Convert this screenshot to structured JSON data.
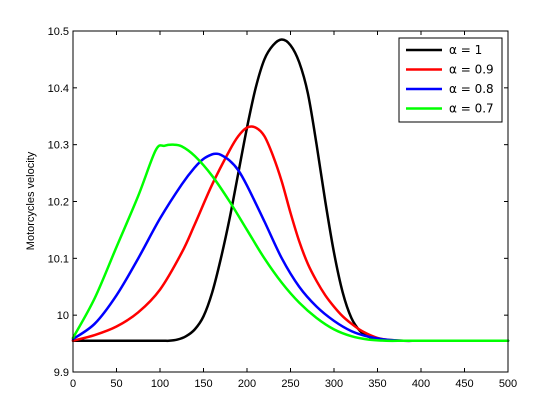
{
  "chart_data": {
    "type": "line",
    "title": "",
    "xlabel": "",
    "ylabel": "Motorcycles velocity",
    "xlim": [
      0,
      500
    ],
    "ylim": [
      9.9,
      10.5
    ],
    "xticks": [
      0,
      50,
      100,
      150,
      200,
      250,
      300,
      350,
      400,
      450,
      500
    ],
    "yticks": [
      9.9,
      10,
      10.1,
      10.2,
      10.3,
      10.4,
      10.5
    ],
    "xtick_labels": [
      "0",
      "50",
      "100",
      "150",
      "200",
      "250",
      "300",
      "350",
      "400",
      "450",
      "500"
    ],
    "ytick_labels": [
      "9.9",
      "10",
      "10.1",
      "10.2",
      "10.3",
      "10.4",
      "10.5"
    ],
    "grid": false,
    "legend_position": "top-right",
    "series": [
      {
        "name": "α = 1",
        "color": "#000000",
        "x": [
          0,
          50,
          100,
          110,
          120,
          130,
          140,
          150,
          160,
          170,
          180,
          190,
          200,
          210,
          220,
          230,
          240,
          250,
          260,
          270,
          280,
          290,
          300,
          310,
          320,
          330,
          340,
          350,
          360,
          370,
          380,
          400,
          450,
          500
        ],
        "y": [
          9.955,
          9.955,
          9.955,
          9.955,
          9.957,
          9.963,
          9.975,
          9.998,
          10.04,
          10.1,
          10.17,
          10.25,
          10.33,
          10.4,
          10.45,
          10.475,
          10.485,
          10.475,
          10.445,
          10.39,
          10.3,
          10.2,
          10.11,
          10.04,
          9.995,
          9.972,
          9.962,
          9.958,
          9.956,
          9.955,
          9.955,
          9.955,
          9.955,
          9.955
        ]
      },
      {
        "name": "α = 0.9",
        "color": "#ff0000",
        "x": [
          0,
          25,
          50,
          75,
          100,
          125,
          140,
          160,
          180,
          190,
          200,
          210,
          220,
          230,
          240,
          250,
          260,
          270,
          280,
          290,
          300,
          310,
          320,
          330,
          340,
          350,
          360,
          380,
          400,
          450,
          500
        ],
        "y": [
          9.955,
          9.965,
          9.98,
          10.005,
          10.045,
          10.11,
          10.16,
          10.23,
          10.29,
          10.315,
          10.33,
          10.33,
          10.315,
          10.28,
          10.235,
          10.18,
          10.13,
          10.09,
          10.06,
          10.035,
          10.015,
          9.998,
          9.985,
          9.974,
          9.966,
          9.96,
          9.957,
          9.955,
          9.955,
          9.955,
          9.955
        ]
      },
      {
        "name": "α = 0.8",
        "color": "#0000ff",
        "x": [
          0,
          25,
          50,
          75,
          100,
          125,
          140,
          150,
          160,
          165,
          170,
          180,
          190,
          200,
          220,
          240,
          260,
          280,
          300,
          320,
          340,
          360,
          380,
          400,
          450,
          500
        ],
        "y": [
          9.958,
          9.985,
          10.035,
          10.1,
          10.17,
          10.23,
          10.26,
          10.275,
          10.283,
          10.284,
          10.282,
          10.272,
          10.255,
          10.228,
          10.165,
          10.1,
          10.05,
          10.015,
          9.99,
          9.972,
          9.962,
          9.957,
          9.955,
          9.955,
          9.955,
          9.955
        ]
      },
      {
        "name": "α = 0.7",
        "color": "#00ff00",
        "x": [
          0,
          25,
          50,
          75,
          95,
          105,
          115,
          125,
          140,
          160,
          180,
          200,
          220,
          240,
          260,
          280,
          300,
          320,
          340,
          360,
          380,
          400,
          450,
          500
        ],
        "y": [
          9.96,
          10.03,
          10.12,
          10.21,
          10.29,
          10.298,
          10.3,
          10.297,
          10.28,
          10.245,
          10.2,
          10.15,
          10.1,
          10.057,
          10.022,
          9.995,
          9.975,
          9.963,
          9.957,
          9.955,
          9.955,
          9.955,
          9.955,
          9.955
        ]
      }
    ]
  }
}
